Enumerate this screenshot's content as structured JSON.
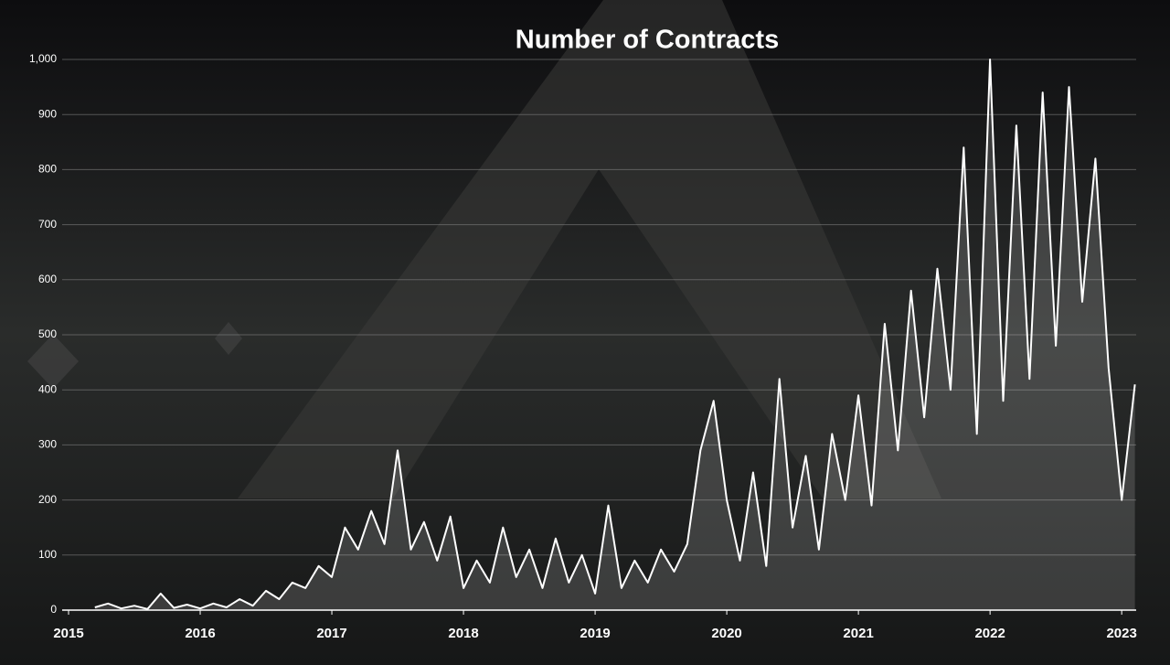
{
  "chart_data": {
    "type": "line",
    "title": "Number of Contracts",
    "x": [
      2015.2,
      2015.3,
      2015.4,
      2015.5,
      2015.6,
      2015.7,
      2015.8,
      2015.9,
      2016.0,
      2016.1,
      2016.2,
      2016.3,
      2016.4,
      2016.5,
      2016.6,
      2016.7,
      2016.8,
      2016.9,
      2017.0,
      2017.1,
      2017.2,
      2017.3,
      2017.4,
      2017.5,
      2017.6,
      2017.7,
      2017.8,
      2017.9,
      2018.0,
      2018.1,
      2018.2,
      2018.3,
      2018.4,
      2018.5,
      2018.6,
      2018.7,
      2018.8,
      2018.9,
      2019.0,
      2019.1,
      2019.2,
      2019.3,
      2019.4,
      2019.5,
      2019.6,
      2019.7,
      2019.8,
      2019.9,
      2020.0,
      2020.1,
      2020.2,
      2020.3,
      2020.4,
      2020.5,
      2020.6,
      2020.7,
      2020.8,
      2020.9,
      2021.0,
      2021.1,
      2021.2,
      2021.3,
      2021.4,
      2021.5,
      2021.6,
      2021.7,
      2021.8,
      2021.9,
      2022.0,
      2022.1,
      2022.2,
      2022.3,
      2022.4,
      2022.5,
      2022.6,
      2022.7,
      2022.8,
      2022.9,
      2023.0,
      2023.1
    ],
    "values": [
      5,
      12,
      3,
      8,
      2,
      30,
      4,
      10,
      3,
      12,
      5,
      20,
      8,
      35,
      20,
      50,
      40,
      80,
      60,
      150,
      110,
      180,
      120,
      290,
      110,
      160,
      90,
      170,
      40,
      90,
      50,
      150,
      60,
      110,
      40,
      130,
      50,
      100,
      30,
      190,
      40,
      90,
      50,
      110,
      70,
      120,
      290,
      380,
      200,
      90,
      250,
      80,
      420,
      150,
      280,
      110,
      320,
      200,
      390,
      190,
      520,
      290,
      580,
      350,
      620,
      400,
      840,
      320,
      1000,
      380,
      880,
      420,
      940,
      480,
      950,
      560,
      820,
      440,
      200,
      410
    ],
    "color": "#ffffff",
    "xlim": [
      2015,
      2023.11
    ],
    "xticks": [
      2015,
      2016,
      2017,
      2018,
      2019,
      2020,
      2021,
      2022,
      2023
    ],
    "ylim": [
      0,
      1000
    ],
    "yticks": [
      0,
      100,
      200,
      300,
      400,
      500,
      600,
      700,
      800,
      900,
      {
        "value": 1000,
        "label": "1,000"
      }
    ],
    "grid": true
  }
}
